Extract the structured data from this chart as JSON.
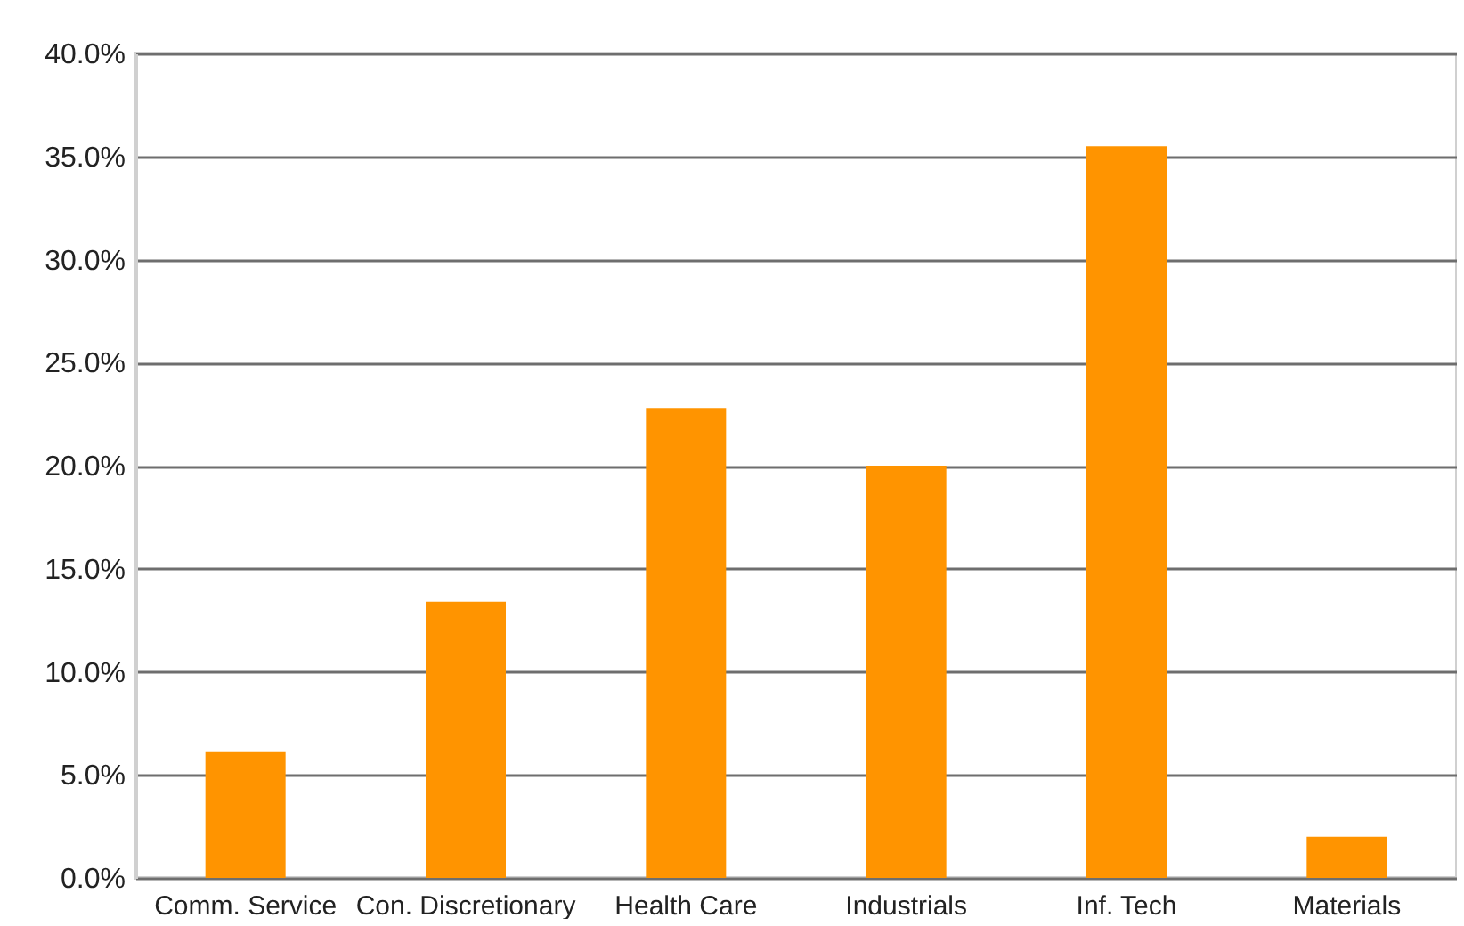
{
  "chart_data": {
    "type": "bar",
    "categories": [
      "Comm. Service",
      "Con. Discretionary",
      "Health Care",
      "Industrials",
      "Inf. Tech",
      "Materials"
    ],
    "values": [
      6.1,
      13.4,
      22.8,
      20.0,
      35.5,
      2.0
    ],
    "color": "#ff9400",
    "ylim": [
      0,
      40
    ],
    "yticks": [
      {
        "value": 0,
        "label": "0.0%"
      },
      {
        "value": 5,
        "label": "5.0%"
      },
      {
        "value": 10,
        "label": "10.0%"
      },
      {
        "value": 15,
        "label": "15.0%"
      },
      {
        "value": 20,
        "label": "20.0%"
      },
      {
        "value": 25,
        "label": "25.0%"
      },
      {
        "value": 30,
        "label": "30.0%"
      },
      {
        "value": 35,
        "label": "35.0%"
      },
      {
        "value": 40,
        "label": "40.0%"
      }
    ],
    "grid": "y"
  }
}
